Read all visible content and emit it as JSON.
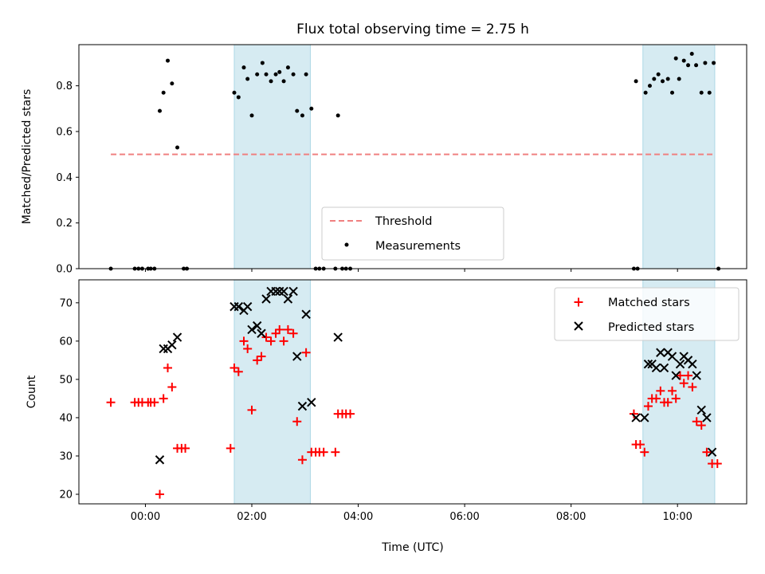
{
  "chart_data": [
    {
      "panel": "top",
      "type": "scatter",
      "title": "Flux total observing time = 2.75 h",
      "ylabel": "Matched/Predicted stars",
      "xlabel": "",
      "x_unit": "hours UTC",
      "xlim": [
        -1.25,
        11.3
      ],
      "ylim": [
        0,
        0.98
      ],
      "yticks": [
        "0.0",
        "0.2",
        "0.4",
        "0.6",
        "0.8"
      ],
      "ytick_values": [
        0,
        0.2,
        0.4,
        0.6,
        0.8
      ],
      "shaded_intervals": [
        [
          1.67,
          3.1
        ],
        [
          9.35,
          10.7
        ]
      ],
      "shade_color": "#add8e6",
      "threshold": {
        "name": "Threshold",
        "y": 0.5,
        "x_range": [
          -0.65,
          10.7
        ],
        "color": "#f08080"
      },
      "series": [
        {
          "name": "Measurements",
          "color": "#000000",
          "points": [
            [
              -0.65,
              0
            ],
            [
              -0.2,
              0
            ],
            [
              -0.13,
              0
            ],
            [
              -0.06,
              0
            ],
            [
              0.05,
              0
            ],
            [
              0.1,
              0
            ],
            [
              0.17,
              0
            ],
            [
              0.27,
              0.69
            ],
            [
              0.34,
              0.77
            ],
            [
              0.42,
              0.91
            ],
            [
              0.5,
              0.81
            ],
            [
              0.6,
              0.53
            ],
            [
              0.72,
              0
            ],
            [
              0.78,
              0
            ],
            [
              1.67,
              0.77
            ],
            [
              1.75,
              0.75
            ],
            [
              1.85,
              0.88
            ],
            [
              1.92,
              0.83
            ],
            [
              2.0,
              0.67
            ],
            [
              2.1,
              0.85
            ],
            [
              2.2,
              0.9
            ],
            [
              2.27,
              0.85
            ],
            [
              2.36,
              0.82
            ],
            [
              2.45,
              0.85
            ],
            [
              2.52,
              0.86
            ],
            [
              2.6,
              0.82
            ],
            [
              2.68,
              0.88
            ],
            [
              2.78,
              0.85
            ],
            [
              2.85,
              0.69
            ],
            [
              2.95,
              0.67
            ],
            [
              3.02,
              0.85
            ],
            [
              3.12,
              0.7
            ],
            [
              3.2,
              0
            ],
            [
              3.27,
              0
            ],
            [
              3.35,
              0
            ],
            [
              3.57,
              0
            ],
            [
              3.62,
              0.67
            ],
            [
              3.7,
              0
            ],
            [
              3.77,
              0
            ],
            [
              3.85,
              0
            ],
            [
              9.18,
              0
            ],
            [
              9.25,
              0
            ],
            [
              9.22,
              0.82
            ],
            [
              9.4,
              0.77
            ],
            [
              9.48,
              0.8
            ],
            [
              9.56,
              0.83
            ],
            [
              9.64,
              0.85
            ],
            [
              9.72,
              0.82
            ],
            [
              9.82,
              0.83
            ],
            [
              9.9,
              0.77
            ],
            [
              9.97,
              0.92
            ],
            [
              10.03,
              0.83
            ],
            [
              10.12,
              0.91
            ],
            [
              10.2,
              0.89
            ],
            [
              10.27,
              0.94
            ],
            [
              10.35,
              0.89
            ],
            [
              10.45,
              0.77
            ],
            [
              10.52,
              0.9
            ],
            [
              10.6,
              0.77
            ],
            [
              10.68,
              0.9
            ],
            [
              10.77,
              0
            ]
          ]
        }
      ],
      "legend": {
        "placement": "lower-center",
        "entries": [
          "Threshold",
          "Measurements"
        ]
      }
    },
    {
      "panel": "bottom",
      "type": "scatter",
      "title": "",
      "ylabel": "Count",
      "xlabel": "Time (UTC)",
      "x_unit": "hours UTC",
      "xlim": [
        -1.25,
        11.3
      ],
      "ylim": [
        17.5,
        76
      ],
      "xticks": [
        "00:00",
        "02:00",
        "04:00",
        "06:00",
        "08:00",
        "10:00"
      ],
      "xtick_values": [
        0,
        2,
        4,
        6,
        8,
        10
      ],
      "yticks": [
        "20",
        "30",
        "40",
        "50",
        "60",
        "70"
      ],
      "ytick_values": [
        20,
        30,
        40,
        50,
        60,
        70
      ],
      "shaded_intervals": [
        [
          1.67,
          3.1
        ],
        [
          9.35,
          10.7
        ]
      ],
      "shade_color": "#add8e6",
      "series": [
        {
          "name": "Matched stars",
          "marker": "plus",
          "color": "#ff0000",
          "points": [
            [
              -0.65,
              44
            ],
            [
              -0.2,
              44
            ],
            [
              -0.13,
              44
            ],
            [
              -0.06,
              44
            ],
            [
              0.05,
              44
            ],
            [
              0.1,
              44
            ],
            [
              0.17,
              44
            ],
            [
              0.27,
              20
            ],
            [
              0.34,
              45
            ],
            [
              0.42,
              53
            ],
            [
              0.5,
              48
            ],
            [
              0.6,
              32
            ],
            [
              0.68,
              32
            ],
            [
              0.75,
              32
            ],
            [
              1.6,
              32
            ],
            [
              1.67,
              53
            ],
            [
              1.75,
              52
            ],
            [
              1.85,
              60
            ],
            [
              1.92,
              58
            ],
            [
              2.0,
              42
            ],
            [
              2.1,
              55
            ],
            [
              2.18,
              56
            ],
            [
              2.27,
              61
            ],
            [
              2.36,
              60
            ],
            [
              2.45,
              62
            ],
            [
              2.52,
              63
            ],
            [
              2.6,
              60
            ],
            [
              2.68,
              63
            ],
            [
              2.78,
              62
            ],
            [
              2.85,
              39
            ],
            [
              2.95,
              29
            ],
            [
              3.02,
              57
            ],
            [
              3.12,
              31
            ],
            [
              3.2,
              31
            ],
            [
              3.27,
              31
            ],
            [
              3.35,
              31
            ],
            [
              3.57,
              31
            ],
            [
              3.62,
              41
            ],
            [
              3.7,
              41
            ],
            [
              3.77,
              41
            ],
            [
              3.85,
              41
            ],
            [
              9.18,
              41
            ],
            [
              9.22,
              33
            ],
            [
              9.3,
              33
            ],
            [
              9.38,
              31
            ],
            [
              9.45,
              43
            ],
            [
              9.52,
              45
            ],
            [
              9.6,
              45
            ],
            [
              9.68,
              47
            ],
            [
              9.75,
              44
            ],
            [
              9.82,
              44
            ],
            [
              9.9,
              47
            ],
            [
              9.97,
              45
            ],
            [
              10.05,
              51
            ],
            [
              10.12,
              49
            ],
            [
              10.2,
              51
            ],
            [
              10.28,
              48
            ],
            [
              10.36,
              39
            ],
            [
              10.45,
              38
            ],
            [
              10.55,
              31
            ],
            [
              10.65,
              28
            ],
            [
              10.75,
              28
            ]
          ]
        },
        {
          "name": "Predicted stars",
          "marker": "x",
          "color": "#000000",
          "points": [
            [
              0.27,
              29
            ],
            [
              0.34,
              58
            ],
            [
              0.42,
              58
            ],
            [
              0.5,
              59
            ],
            [
              0.6,
              61
            ],
            [
              1.67,
              69
            ],
            [
              1.75,
              69
            ],
            [
              1.85,
              68
            ],
            [
              1.92,
              69
            ],
            [
              2.0,
              63
            ],
            [
              2.1,
              64
            ],
            [
              2.18,
              62
            ],
            [
              2.27,
              71
            ],
            [
              2.36,
              73
            ],
            [
              2.45,
              73
            ],
            [
              2.52,
              73
            ],
            [
              2.6,
              73
            ],
            [
              2.68,
              71
            ],
            [
              2.78,
              73
            ],
            [
              2.85,
              56
            ],
            [
              2.95,
              43
            ],
            [
              3.02,
              67
            ],
            [
              3.12,
              44
            ],
            [
              3.62,
              61
            ],
            [
              9.22,
              40
            ],
            [
              9.38,
              40
            ],
            [
              9.45,
              54
            ],
            [
              9.52,
              54
            ],
            [
              9.6,
              53
            ],
            [
              9.68,
              57
            ],
            [
              9.75,
              53
            ],
            [
              9.82,
              57
            ],
            [
              9.9,
              56
            ],
            [
              9.97,
              51
            ],
            [
              10.05,
              54
            ],
            [
              10.12,
              56
            ],
            [
              10.2,
              55
            ],
            [
              10.28,
              54
            ],
            [
              10.36,
              51
            ],
            [
              10.45,
              42
            ],
            [
              10.55,
              40
            ],
            [
              10.65,
              31
            ]
          ]
        }
      ],
      "legend": {
        "placement": "upper-right",
        "entries": [
          "Matched stars",
          "Predicted stars"
        ]
      }
    }
  ]
}
